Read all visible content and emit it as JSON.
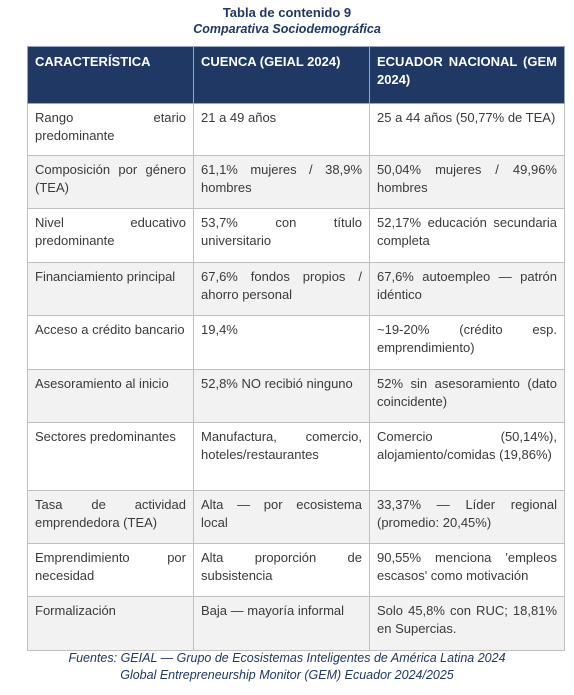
{
  "header": {
    "title": "Tabla de contenido 9",
    "subtitle": "Comparativa Sociodemográfica"
  },
  "table": {
    "headers": [
      "CARACTERÍSTICA",
      "CUENCA (GEIAL 2024)",
      "ECUADOR NACIONAL (GEM 2024)"
    ],
    "rows": [
      [
        "Rango etario predominante",
        "21 a 49 años",
        "25 a 44 años (50,77% de TEA)"
      ],
      [
        "Composición por género (TEA)",
        "61,1% mujeres / 38,9% hombres",
        "50,04% mujeres / 49,96% hombres"
      ],
      [
        "Nivel educativo predominante",
        "53,7% con título universitario",
        "52,17% educación secundaria completa"
      ],
      [
        "Financiamiento principal",
        "67,6% fondos propios / ahorro personal",
        "67,6% autoempleo — patrón idéntico"
      ],
      [
        "Acceso a crédito bancario",
        "19,4%",
        "~19-20% (crédito esp. emprendimiento)"
      ],
      [
        "Asesoramiento al inicio",
        "52,8% NO recibió ninguno",
        "52% sin asesoramiento (dato coincidente)"
      ],
      [
        "Sectores predominantes",
        "Manufactura, comercio, hoteles/restaurantes",
        "Comercio (50,14%), alojamiento/comidas (19,86%)"
      ],
      [
        "Tasa de actividad emprendedora (TEA)",
        "Alta — por ecosistema local",
        "33,37% — Líder regional (promedio: 20,45%)"
      ],
      [
        "Emprendimiento por necesidad",
        "Alta proporción de subsistencia",
        "90,55% menciona 'empleos escasos' como motivación"
      ],
      [
        "Formalización",
        "Baja — mayoría informal",
        "Solo 45,8% con RUC; 18,81% en Supercias."
      ]
    ]
  },
  "footer": {
    "lines": [
      "Fuentes: GEIAL — Grupo de Ecosistemas Inteligentes de América Latina 2024",
      "Global Entrepreneurship Monitor (GEM) Ecuador 2024/2025"
    ]
  }
}
